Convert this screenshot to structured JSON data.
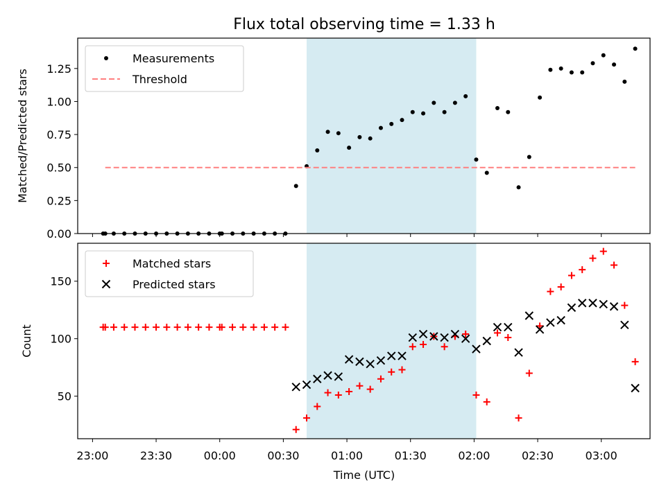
{
  "title": "Flux total observing time = 1.33 h",
  "chart_data": [
    {
      "type": "scatter",
      "title": "Flux total observing time = 1.33 h",
      "xlabel": "",
      "ylabel": "Matched/Predicted stars",
      "xlim": [
        "22:53",
        "03:23"
      ],
      "ylim": [
        0,
        1.48
      ],
      "yticks": [
        "0.00",
        "0.25",
        "0.50",
        "0.75",
        "1.00",
        "1.25"
      ],
      "shaded_span": [
        "00:41",
        "02:01"
      ],
      "shaded_color": "#add8e6",
      "legend_position": "upper left",
      "series": [
        {
          "name": "Measurements",
          "marker": "dot",
          "color": "#000000",
          "points": [
            [
              "23:05",
              0.0
            ],
            [
              "23:06",
              0.0
            ],
            [
              "23:10",
              0.0
            ],
            [
              "23:15",
              0.0
            ],
            [
              "23:20",
              0.0
            ],
            [
              "23:25",
              0.0
            ],
            [
              "23:30",
              0.0
            ],
            [
              "23:35",
              0.0
            ],
            [
              "23:40",
              0.0
            ],
            [
              "23:45",
              0.0
            ],
            [
              "23:50",
              0.0
            ],
            [
              "23:55",
              0.0
            ],
            [
              "00:00",
              0.0
            ],
            [
              "00:01",
              0.0
            ],
            [
              "00:06",
              0.0
            ],
            [
              "00:11",
              0.0
            ],
            [
              "00:16",
              0.0
            ],
            [
              "00:21",
              0.0
            ],
            [
              "00:26",
              0.0
            ],
            [
              "00:31",
              0.0
            ],
            [
              "00:36",
              0.36
            ],
            [
              "00:41",
              0.51
            ],
            [
              "00:46",
              0.63
            ],
            [
              "00:51",
              0.77
            ],
            [
              "00:56",
              0.76
            ],
            [
              "01:01",
              0.65
            ],
            [
              "01:06",
              0.73
            ],
            [
              "01:11",
              0.72
            ],
            [
              "01:16",
              0.8
            ],
            [
              "01:21",
              0.83
            ],
            [
              "01:26",
              0.86
            ],
            [
              "01:31",
              0.92
            ],
            [
              "01:36",
              0.91
            ],
            [
              "01:41",
              0.99
            ],
            [
              "01:46",
              0.92
            ],
            [
              "01:51",
              0.99
            ],
            [
              "01:56",
              1.04
            ],
            [
              "02:01",
              0.56
            ],
            [
              "02:06",
              0.46
            ],
            [
              "02:11",
              0.95
            ],
            [
              "02:16",
              0.92
            ],
            [
              "02:21",
              0.35
            ],
            [
              "02:26",
              0.58
            ],
            [
              "02:31",
              1.03
            ],
            [
              "02:36",
              1.24
            ],
            [
              "02:41",
              1.25
            ],
            [
              "02:46",
              1.22
            ],
            [
              "02:51",
              1.22
            ],
            [
              "02:56",
              1.29
            ],
            [
              "03:01",
              1.35
            ],
            [
              "03:06",
              1.28
            ],
            [
              "03:11",
              1.15
            ],
            [
              "03:16",
              1.4
            ]
          ]
        },
        {
          "name": "Threshold",
          "marker": "dashed-line",
          "color": "#ff7f7f",
          "points": [
            [
              "23:06",
              0.5
            ],
            [
              "03:16",
              0.5
            ]
          ]
        }
      ]
    },
    {
      "type": "scatter",
      "title": "",
      "xlabel": "Time (UTC)",
      "ylabel": "Count",
      "xlim": [
        "22:53",
        "03:23"
      ],
      "ylim": [
        13,
        183
      ],
      "xticks": [
        "23:00",
        "23:30",
        "00:00",
        "00:30",
        "01:00",
        "01:30",
        "02:00",
        "02:30",
        "03:00"
      ],
      "yticks": [
        "50",
        "100",
        "150"
      ],
      "shaded_span": [
        "00:41",
        "02:01"
      ],
      "shaded_color": "#add8e6",
      "legend_position": "upper left",
      "series": [
        {
          "name": "Matched stars",
          "marker": "plus",
          "color": "#ff0000",
          "points": [
            [
              "23:05",
              110
            ],
            [
              "23:06",
              110
            ],
            [
              "23:10",
              110
            ],
            [
              "23:15",
              110
            ],
            [
              "23:20",
              110
            ],
            [
              "23:25",
              110
            ],
            [
              "23:30",
              110
            ],
            [
              "23:35",
              110
            ],
            [
              "23:40",
              110
            ],
            [
              "23:45",
              110
            ],
            [
              "23:50",
              110
            ],
            [
              "23:55",
              110
            ],
            [
              "00:00",
              110
            ],
            [
              "00:01",
              110
            ],
            [
              "00:06",
              110
            ],
            [
              "00:11",
              110
            ],
            [
              "00:16",
              110
            ],
            [
              "00:21",
              110
            ],
            [
              "00:26",
              110
            ],
            [
              "00:31",
              110
            ],
            [
              "00:36",
              21
            ],
            [
              "00:41",
              31
            ],
            [
              "00:46",
              41
            ],
            [
              "00:51",
              53
            ],
            [
              "00:56",
              51
            ],
            [
              "01:01",
              54
            ],
            [
              "01:06",
              59
            ],
            [
              "01:11",
              56
            ],
            [
              "01:16",
              65
            ],
            [
              "01:21",
              71
            ],
            [
              "01:26",
              73
            ],
            [
              "01:31",
              93
            ],
            [
              "01:36",
              95
            ],
            [
              "01:41",
              102
            ],
            [
              "01:46",
              93
            ],
            [
              "01:51",
              102
            ],
            [
              "01:56",
              104
            ],
            [
              "02:01",
              51
            ],
            [
              "02:06",
              45
            ],
            [
              "02:11",
              105
            ],
            [
              "02:16",
              101
            ],
            [
              "02:21",
              31
            ],
            [
              "02:26",
              70
            ],
            [
              "02:31",
              111
            ],
            [
              "02:36",
              141
            ],
            [
              "02:41",
              145
            ],
            [
              "02:46",
              155
            ],
            [
              "02:51",
              160
            ],
            [
              "02:56",
              170
            ],
            [
              "03:01",
              176
            ],
            [
              "03:06",
              164
            ],
            [
              "03:11",
              129
            ],
            [
              "03:16",
              80
            ]
          ]
        },
        {
          "name": "Predicted stars",
          "marker": "x",
          "color": "#000000",
          "points": [
            [
              "00:36",
              58
            ],
            [
              "00:41",
              60
            ],
            [
              "00:46",
              65
            ],
            [
              "00:51",
              68
            ],
            [
              "00:56",
              67
            ],
            [
              "01:01",
              82
            ],
            [
              "01:06",
              80
            ],
            [
              "01:11",
              78
            ],
            [
              "01:16",
              81
            ],
            [
              "01:21",
              85
            ],
            [
              "01:26",
              85
            ],
            [
              "01:31",
              101
            ],
            [
              "01:36",
              104
            ],
            [
              "01:41",
              102
            ],
            [
              "01:46",
              101
            ],
            [
              "01:51",
              104
            ],
            [
              "01:56",
              100
            ],
            [
              "02:01",
              91
            ],
            [
              "02:06",
              98
            ],
            [
              "02:11",
              110
            ],
            [
              "02:16",
              110
            ],
            [
              "02:21",
              88
            ],
            [
              "02:26",
              120
            ],
            [
              "02:31",
              108
            ],
            [
              "02:36",
              114
            ],
            [
              "02:41",
              116
            ],
            [
              "02:46",
              127
            ],
            [
              "02:51",
              131
            ],
            [
              "02:56",
              131
            ],
            [
              "03:01",
              130
            ],
            [
              "03:06",
              128
            ],
            [
              "03:11",
              112
            ],
            [
              "03:16",
              57
            ]
          ]
        }
      ]
    }
  ]
}
